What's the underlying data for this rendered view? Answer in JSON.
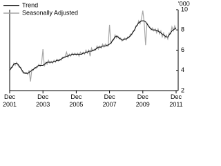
{
  "chart_data": {
    "type": "line",
    "unit_label": "'000",
    "categories": [
      "Dec 2001",
      null,
      null,
      null,
      null,
      null,
      null,
      null,
      null,
      null,
      null,
      null,
      null,
      null,
      null,
      null,
      null,
      null,
      null,
      null,
      null,
      null,
      null,
      null,
      "Dec 2003",
      null,
      null,
      null,
      null,
      null,
      null,
      null,
      null,
      null,
      null,
      null,
      null,
      null,
      null,
      null,
      null,
      null,
      null,
      null,
      null,
      null,
      null,
      null,
      "Dec 2005",
      null,
      null,
      null,
      null,
      null,
      null,
      null,
      null,
      null,
      null,
      null,
      null,
      null,
      null,
      null,
      null,
      null,
      null,
      null,
      null,
      null,
      null,
      null,
      "Dec 2007",
      null,
      null,
      null,
      null,
      null,
      null,
      null,
      null,
      null,
      null,
      null,
      null,
      null,
      null,
      null,
      null,
      null,
      null,
      null,
      null,
      null,
      null,
      null,
      "Dec 2009",
      null,
      null,
      null,
      null,
      null,
      null,
      null,
      null,
      null,
      null,
      null,
      null,
      null,
      null,
      null,
      null,
      null,
      null,
      null,
      null,
      null,
      null,
      null,
      "Dec 2011"
    ],
    "series": [
      {
        "name": "Trend",
        "color": "#000000",
        "values": [
          4.0,
          4.2,
          4.4,
          4.6,
          4.7,
          4.7,
          4.6,
          4.4,
          4.2,
          4.0,
          3.8,
          3.7,
          3.7,
          3.7,
          3.8,
          3.9,
          4.0,
          4.1,
          4.2,
          4.3,
          4.4,
          4.5,
          4.5,
          4.5,
          4.5,
          4.6,
          4.7,
          4.8,
          4.8,
          4.8,
          4.8,
          4.8,
          4.9,
          4.9,
          5.0,
          5.0,
          5.0,
          5.1,
          5.2,
          5.3,
          5.3,
          5.4,
          5.4,
          5.5,
          5.5,
          5.6,
          5.6,
          5.6,
          5.6,
          5.6,
          5.6,
          5.6,
          5.6,
          5.7,
          5.7,
          5.8,
          5.8,
          5.9,
          5.9,
          5.9,
          6.0,
          6.0,
          6.1,
          6.2,
          6.3,
          6.3,
          6.3,
          6.4,
          6.4,
          6.4,
          6.5,
          6.5,
          6.6,
          6.7,
          6.9,
          7.1,
          7.3,
          7.4,
          7.3,
          7.2,
          7.1,
          7.0,
          7.0,
          7.1,
          7.1,
          7.2,
          7.3,
          7.4,
          7.6,
          7.8,
          8.0,
          8.3,
          8.5,
          8.7,
          8.8,
          8.9,
          8.9,
          8.9,
          8.8,
          8.6,
          8.4,
          8.2,
          8.1,
          8.0,
          8.0,
          8.0,
          7.9,
          7.9,
          7.8,
          7.7,
          7.6,
          7.5,
          7.4,
          7.3,
          7.3,
          7.5,
          7.7,
          7.9,
          8.0,
          8.1,
          8.2
        ]
      },
      {
        "name": "Seasonally Adjusted",
        "color": "#a6a6a6",
        "values": [
          4.1,
          4.3,
          4.3,
          4.7,
          4.5,
          4.8,
          4.5,
          4.3,
          4.3,
          3.9,
          3.7,
          3.8,
          3.8,
          3.6,
          4.0,
          2.9,
          4.1,
          4.0,
          4.3,
          4.2,
          4.3,
          4.6,
          4.4,
          4.7,
          6.1,
          4.4,
          4.8,
          4.6,
          5.0,
          4.7,
          4.9,
          4.7,
          5.0,
          4.8,
          5.1,
          4.9,
          5.1,
          5.0,
          5.3,
          5.2,
          5.4,
          5.8,
          5.3,
          5.6,
          5.4,
          5.7,
          5.5,
          5.7,
          5.5,
          5.7,
          5.4,
          5.8,
          5.6,
          5.8,
          5.6,
          6.0,
          5.7,
          6.0,
          5.4,
          6.2,
          5.9,
          6.1,
          6.0,
          6.4,
          6.1,
          6.4,
          6.2,
          6.6,
          6.3,
          6.6,
          6.4,
          6.4,
          8.5,
          6.6,
          7.0,
          7.0,
          7.5,
          7.2,
          7.4,
          7.1,
          7.2,
          6.9,
          7.1,
          7.2,
          7.0,
          7.3,
          7.2,
          7.6,
          7.5,
          7.9,
          7.9,
          8.4,
          8.4,
          8.9,
          8.6,
          9.1,
          9.9,
          8.7,
          6.5,
          8.7,
          8.4,
          8.3,
          8.0,
          8.2,
          7.9,
          8.1,
          7.7,
          8.1,
          7.6,
          7.9,
          7.3,
          7.7,
          7.2,
          7.5,
          7.1,
          7.7,
          7.6,
          8.3,
          7.9,
          8.4,
          8.0
        ]
      }
    ],
    "ylim": [
      2,
      10
    ],
    "yticks": [
      2,
      4,
      6,
      8,
      10
    ],
    "legend": "top-left"
  }
}
